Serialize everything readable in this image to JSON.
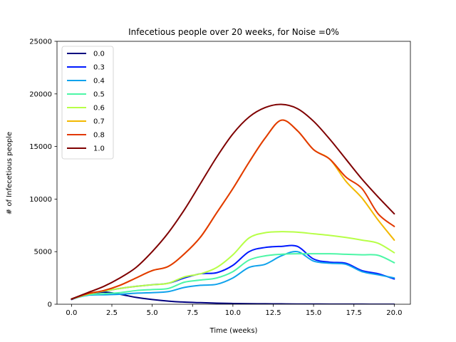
{
  "chart_data": {
    "type": "line",
    "title": "Infecetious people over 20 weeks, for Noise =0%",
    "xlabel": "Time (weeks)",
    "ylabel": "# of Infecetious people",
    "xlim": [
      -0.9,
      21.0
    ],
    "ylim": [
      0,
      25000
    ],
    "xticks": [
      0.0,
      2.5,
      5.0,
      7.5,
      10.0,
      12.5,
      15.0,
      17.5,
      20.0
    ],
    "xtick_labels": [
      "0.0",
      "2.5",
      "5.0",
      "7.5",
      "10.0",
      "12.5",
      "15.0",
      "17.5",
      "20.0"
    ],
    "yticks": [
      0,
      5000,
      10000,
      15000,
      20000,
      25000
    ],
    "ytick_labels": [
      "0",
      "5000",
      "10000",
      "15000",
      "20000",
      "25000"
    ],
    "grid": false,
    "legend_position": "top-left",
    "x": [
      0,
      1,
      2,
      3,
      4,
      5,
      6,
      7,
      8,
      9,
      10,
      11,
      12,
      13,
      14,
      15,
      16,
      17,
      18,
      19,
      20
    ],
    "series": [
      {
        "name": "0.0",
        "color": "#00007f",
        "values": [
          450,
          950,
          1150,
          950,
          650,
          450,
          300,
          200,
          150,
          100,
          70,
          50,
          40,
          30,
          20,
          15,
          10,
          8,
          5,
          3,
          2
        ]
      },
      {
        "name": "0.3",
        "color": "#0019ff",
        "values": [
          500,
          1000,
          1250,
          1500,
          1700,
          1850,
          2000,
          2500,
          2900,
          3000,
          3700,
          5000,
          5400,
          5500,
          5500,
          4300,
          4000,
          3900,
          3200,
          2900,
          2400
        ]
      },
      {
        "name": "0.4",
        "color": "#0fa2ec",
        "values": [
          500,
          850,
          900,
          950,
          1050,
          1100,
          1200,
          1600,
          1800,
          1900,
          2500,
          3500,
          3800,
          4600,
          5000,
          4100,
          3900,
          3800,
          3100,
          2800,
          2500
        ]
      },
      {
        "name": "0.5",
        "color": "#4cf6a6",
        "values": [
          500,
          900,
          1000,
          1100,
          1300,
          1400,
          1500,
          2100,
          2300,
          2500,
          3100,
          4200,
          4600,
          4750,
          4800,
          4800,
          4800,
          4750,
          4700,
          4650,
          3950
        ]
      },
      {
        "name": "0.6",
        "color": "#b7ff47",
        "values": [
          500,
          950,
          1250,
          1500,
          1700,
          1850,
          2000,
          2600,
          2900,
          3500,
          4700,
          6300,
          6800,
          6900,
          6850,
          6700,
          6550,
          6350,
          6100,
          5800,
          4900
        ]
      },
      {
        "name": "0.7",
        "color": "#f3b800",
        "values": [
          500,
          1000,
          1300,
          1800,
          2500,
          3200,
          3600,
          4800,
          6400,
          8700,
          11000,
          13500,
          15800,
          17500,
          16500,
          14700,
          13800,
          11700,
          10100,
          8000,
          6100
        ]
      },
      {
        "name": "0.8",
        "color": "#e23800",
        "values": [
          500,
          1000,
          1300,
          1800,
          2500,
          3200,
          3600,
          4800,
          6400,
          8700,
          11000,
          13500,
          15800,
          17500,
          16500,
          14700,
          13800,
          12100,
          11000,
          8600,
          7400
        ]
      },
      {
        "name": "1.0",
        "color": "#7f0000",
        "values": [
          500,
          1100,
          1700,
          2500,
          3500,
          5000,
          6800,
          9000,
          11500,
          14000,
          16200,
          17800,
          18700,
          19000,
          18600,
          17400,
          15700,
          13800,
          11900,
          10200,
          8600
        ]
      }
    ]
  }
}
